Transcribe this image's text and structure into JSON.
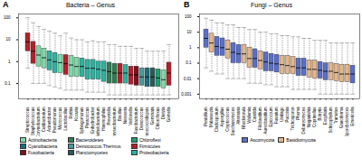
{
  "chart_data": [
    {
      "type": "box",
      "panel_label": "A",
      "title": "Bacteria – Genus",
      "log": "y",
      "ylim": [
        0.02,
        150
      ],
      "yticks": [
        0.1,
        1,
        10,
        100
      ],
      "categories": [
        "Streptococcus",
        "Staphylococcus",
        "Corynebacterium",
        "Cutibacterium",
        "Acinetobacter",
        "Pseudomonas",
        "Micrococcus",
        "Lactobacillus",
        "Rothia",
        "Kocuria",
        "Sphingomonas",
        "Paracoccus",
        "Enhydrobacter",
        "Methylobacterium",
        "Haemophilus",
        "Prevotella",
        "Chryseobacterium",
        "Bacillus",
        "Neisseria",
        "Veillonella",
        "Fusobacterium",
        "Deinococcus",
        "Chroococcidiopsis",
        "Gemmata",
        "Chloroflexus",
        "Dietzia",
        "Gemella"
      ],
      "groups": [
        "Firmicutes",
        "Firmicutes",
        "Actinobacteria",
        "Actinobacteria",
        "Proteobacteria",
        "Proteobacteria",
        "Actinobacteria",
        "Firmicutes",
        "Actinobacteria",
        "Actinobacteria",
        "Proteobacteria",
        "Proteobacteria",
        "Proteobacteria",
        "Proteobacteria",
        "Proteobacteria",
        "Bacteroidetes",
        "Bacteroidetes",
        "Firmicutes",
        "Proteobacteria",
        "Firmicutes",
        "Fusobacteria",
        "Deinococcus.Thermus",
        "Cyanobacteria",
        "Planctomycetes",
        "Chloroflexi",
        "Actinobacteria",
        "Firmicutes"
      ],
      "low": [
        0.5,
        0.1,
        0.1,
        0.1,
        0.08,
        0.07,
        0.06,
        0.05,
        0.05,
        0.05,
        0.05,
        0.04,
        0.04,
        0.04,
        0.04,
        0.03,
        0.03,
        0.03,
        0.03,
        0.03,
        0.03,
        0.03,
        0.03,
        0.03,
        0.03,
        0.03,
        0.03
      ],
      "q1": [
        3,
        0.8,
        0.6,
        0.5,
        0.4,
        0.3,
        0.3,
        0.25,
        0.2,
        0.2,
        0.2,
        0.15,
        0.15,
        0.15,
        0.12,
        0.1,
        0.1,
        0.1,
        0.1,
        0.09,
        0.08,
        0.08,
        0.07,
        0.07,
        0.07,
        0.06,
        0.08
      ],
      "median": [
        8,
        3,
        2,
        1.5,
        1.2,
        1,
        0.9,
        0.8,
        0.7,
        0.6,
        0.6,
        0.5,
        0.5,
        0.45,
        0.4,
        0.35,
        0.3,
        0.3,
        0.3,
        0.25,
        0.25,
        0.2,
        0.2,
        0.2,
        0.18,
        0.15,
        0.3
      ],
      "q3": [
        20,
        8,
        5,
        4,
        3,
        2.5,
        2,
        2,
        1.8,
        1.5,
        1.4,
        1.2,
        1.2,
        1,
        1,
        0.9,
        0.8,
        0.8,
        0.7,
        0.6,
        0.6,
        0.5,
        0.5,
        0.5,
        0.45,
        0.4,
        0.9
      ],
      "high": [
        100,
        60,
        40,
        30,
        25,
        20,
        15,
        20,
        12,
        10,
        10,
        8,
        9,
        8,
        8,
        6,
        6,
        5,
        5,
        5,
        4,
        4,
        3,
        3,
        3,
        3,
        6
      ],
      "series": [
        {
          "name": "Actinobacteria",
          "color": "#7fd9a8"
        },
        {
          "name": "Bacteroidetes",
          "color": "#2f7d55"
        },
        {
          "name": "Chloroflexi",
          "color": "#1e9e6e"
        },
        {
          "name": "Cyanobacteria",
          "color": "#1a6e7a"
        },
        {
          "name": "Deinococcus.Thermus",
          "color": "#4a9a9a"
        },
        {
          "name": "Firmicutes",
          "color": "#b3202a"
        },
        {
          "name": "Fusobacteria",
          "color": "#7a1020"
        },
        {
          "name": "Planctomycetes",
          "color": "#2a5a5a"
        },
        {
          "name": "Proteobacteria",
          "color": "#2bb3a0"
        }
      ]
    },
    {
      "type": "box",
      "panel_label": "B",
      "title": "Fungi – Genus",
      "log": "y",
      "ylim": [
        0.0005,
        150
      ],
      "yticks": [
        0.001,
        0.01,
        0.1,
        1,
        10,
        100
      ],
      "categories": [
        "Penicillium",
        "Malassezia",
        "Cladosporium",
        "Aspergillus",
        "Cryptococcus",
        "Saccharomyces",
        "Alternaria",
        "Rhodotorula",
        "Wallemia",
        "Candida",
        "Filobasidium",
        "Aureobasidium",
        "Epicoccum",
        "Fusarium",
        "Ustilago",
        "Puccinia",
        "Trichosporon",
        "Phoma",
        "Debaryomyces",
        "Naganishia",
        "Coprinellus",
        "Botrytis",
        "Exophiala",
        "Schizophyllum",
        "Trametes",
        "Ganoderma",
        "Sporobolomyces",
        "Emericella"
      ],
      "groups": [
        "Ascomycota",
        "Basidiomycota",
        "Ascomycota",
        "Ascomycota",
        "Basidiomycota",
        "Ascomycota",
        "Ascomycota",
        "Basidiomycota",
        "Basidiomycota",
        "Ascomycota",
        "Basidiomycota",
        "Ascomycota",
        "Ascomycota",
        "Ascomycota",
        "Basidiomycota",
        "Basidiomycota",
        "Basidiomycota",
        "Ascomycota",
        "Ascomycota",
        "Basidiomycota",
        "Basidiomycota",
        "Ascomycota",
        "Ascomycota",
        "Basidiomycota",
        "Basidiomycota",
        "Basidiomycota",
        "Basidiomycota",
        "Ascomycota"
      ],
      "low": [
        0.05,
        0.03,
        0.02,
        0.02,
        0.01,
        0.01,
        0.01,
        0.01,
        0.005,
        0.005,
        0.005,
        0.004,
        0.004,
        0.003,
        0.003,
        0.003,
        0.002,
        0.002,
        0.002,
        0.002,
        0.002,
        0.001,
        0.001,
        0.001,
        0.001,
        0.001,
        0.001,
        0.001
      ],
      "q1": [
        1,
        0.5,
        0.3,
        0.3,
        0.2,
        0.1,
        0.1,
        0.1,
        0.05,
        0.05,
        0.04,
        0.03,
        0.03,
        0.025,
        0.02,
        0.02,
        0.02,
        0.015,
        0.015,
        0.012,
        0.01,
        0.01,
        0.008,
        0.008,
        0.007,
        0.006,
        0.006,
        0.005
      ],
      "median": [
        4,
        2,
        1.2,
        1,
        0.8,
        0.5,
        0.4,
        0.4,
        0.2,
        0.2,
        0.15,
        0.12,
        0.1,
        0.09,
        0.08,
        0.07,
        0.06,
        0.05,
        0.05,
        0.04,
        0.04,
        0.035,
        0.03,
        0.03,
        0.025,
        0.02,
        0.02,
        0.02
      ],
      "q3": [
        15,
        8,
        5,
        4,
        3,
        2,
        1.5,
        1.5,
        1,
        0.8,
        0.6,
        0.5,
        0.4,
        0.35,
        0.3,
        0.3,
        0.25,
        0.2,
        0.2,
        0.15,
        0.15,
        0.12,
        0.1,
        0.1,
        0.09,
        0.08,
        0.08,
        0.07
      ],
      "high": [
        80,
        60,
        40,
        40,
        30,
        30,
        20,
        20,
        15,
        15,
        10,
        10,
        8,
        8,
        6,
        6,
        5,
        5,
        4,
        4,
        3,
        3,
        3,
        2,
        2,
        2,
        2,
        2
      ],
      "series": [
        {
          "name": "Ascomycota",
          "color": "#5a6fc8"
        },
        {
          "name": "Basidiomycota",
          "color": "#e3b68c"
        }
      ]
    }
  ]
}
